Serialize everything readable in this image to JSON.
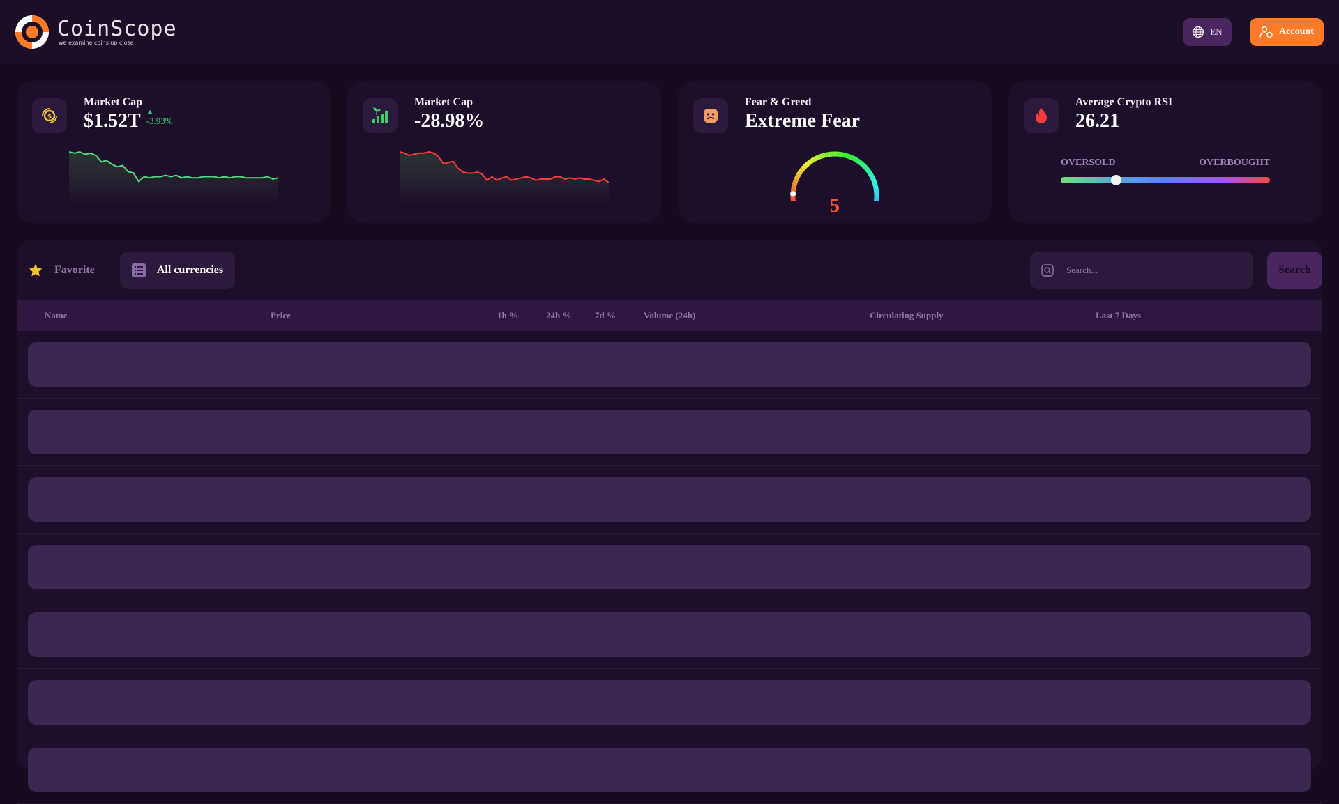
{
  "header": {
    "logo_name": "CoinScope",
    "logo_tagline": "we examine coins up close",
    "lang_label": "EN",
    "account_label": "Account",
    "brand_color": "#ff7a29"
  },
  "cards": [
    {
      "title": "Market Cap",
      "value": "$1.52T",
      "change": "-3.93%",
      "icon": "coins-icon",
      "line_color": "#4ade80",
      "trend": [
        100,
        99,
        100,
        98,
        99,
        97,
        92,
        93,
        90,
        88,
        89,
        84,
        83,
        76,
        80,
        79,
        80,
        80,
        81,
        80,
        81,
        79,
        80,
        79,
        79,
        80,
        80,
        80,
        79,
        80,
        79,
        80,
        80,
        79,
        79,
        79,
        79,
        80,
        78,
        79
      ]
    },
    {
      "title": "Market Cap",
      "value": "-28.98%",
      "icon": "growth-chart-icon",
      "line_color": "#ff3b3b",
      "trend": [
        100,
        99,
        97,
        98,
        99,
        99,
        100,
        99,
        96,
        90,
        91,
        92,
        86,
        83,
        82,
        82,
        83,
        81,
        76,
        79,
        76,
        78,
        79,
        76,
        77,
        78,
        79,
        78,
        76,
        77,
        77,
        77,
        79,
        79,
        77,
        78,
        77,
        78,
        77,
        77,
        76,
        75,
        77,
        74
      ]
    },
    {
      "title": "Fear & Greed",
      "value": "Extreme Fear",
      "gauge_value": 5,
      "gauge_max": 100,
      "value_color": "#f4522d",
      "icon": "sad-face-icon"
    },
    {
      "title": "Average Crypto RSI",
      "value": "26.21",
      "rsi_value": 26.21,
      "low_label": "OVERSOLD",
      "high_label": "OVERBOUGHT",
      "icon": "fire-icon"
    }
  ],
  "tabs": {
    "favorite": "Favorite",
    "all": "All currencies"
  },
  "search": {
    "placeholder": "Search...",
    "button": "Search"
  },
  "table": {
    "columns": [
      "Name",
      "Price",
      "1h %",
      "24h %",
      "7d %",
      "Volume (24h)",
      "Circulating Supply",
      "Last 7 Days"
    ],
    "loading_rows": 7
  }
}
